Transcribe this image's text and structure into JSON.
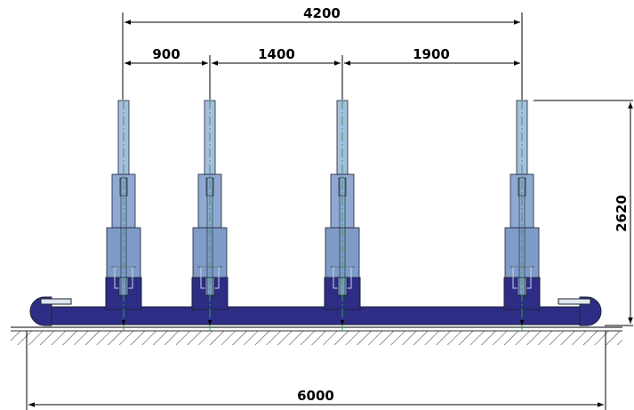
{
  "dimensions": {
    "total_top": "4200",
    "spacing": [
      "900",
      "1400",
      "1900"
    ],
    "height": "2620",
    "total_bottom": "6000"
  },
  "colors": {
    "base": "#2e2d85",
    "cylinder_outer": "#7f9bc7",
    "cylinder_mid": "#8fa9d2",
    "cylinder_rod": "#a7bde0",
    "centerline": "#27a84a",
    "outline": "#1d2233",
    "dimension_line": "#000000"
  }
}
